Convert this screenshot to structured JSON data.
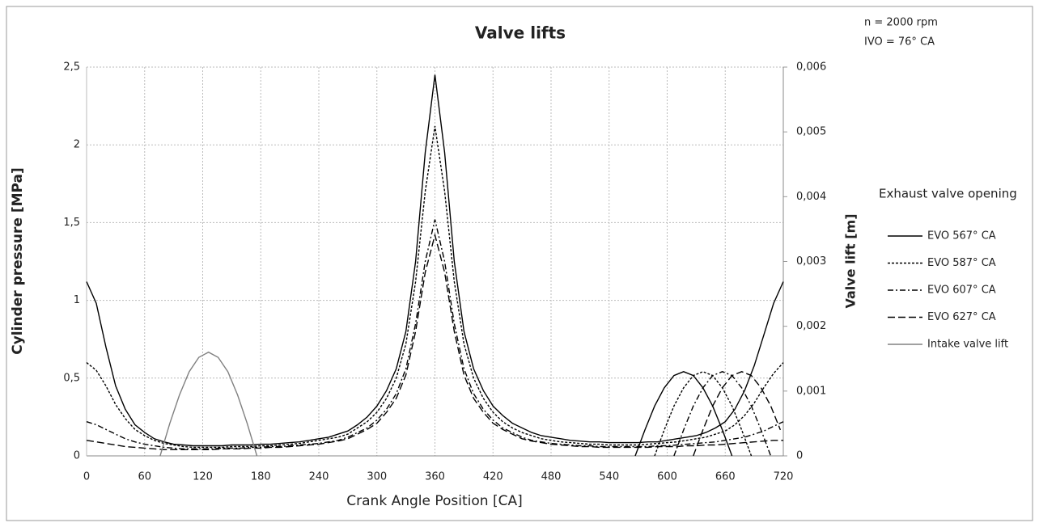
{
  "chart_data": {
    "type": "line",
    "title": "Valve lifts",
    "annotations": [
      "n = 2000 rpm",
      "IVO = 76° CA"
    ],
    "xlabel": "Crank Angle Position [CA]",
    "ylabel": "Cylinder pressure [MPa]",
    "y2label": "Valve lift [m]",
    "legend_title": "Exhaust valve opening",
    "legend": "right",
    "grid": true,
    "xlim": [
      0,
      720
    ],
    "xticks": [
      0,
      60,
      120,
      180,
      240,
      300,
      360,
      420,
      480,
      540,
      600,
      660,
      720
    ],
    "ylim": [
      0,
      2.5
    ],
    "yticks": [
      0,
      {
        "value": 0.5,
        "label": "0,5"
      },
      1,
      {
        "value": 1.5,
        "label": "1,5"
      },
      2,
      {
        "value": 2.5,
        "label": "2,5"
      }
    ],
    "y2lim": [
      0,
      0.006
    ],
    "y2ticks": [
      0,
      {
        "value": 0.001,
        "label": "0,001"
      },
      {
        "value": 0.002,
        "label": "0,002"
      },
      {
        "value": 0.003,
        "label": "0,003"
      },
      {
        "value": 0.004,
        "label": "0,004"
      },
      {
        "value": 0.005,
        "label": "0,005"
      },
      {
        "value": 0.006,
        "label": "0,006"
      }
    ],
    "x": [
      0,
      10,
      20,
      30,
      40,
      50,
      60,
      70,
      80,
      90,
      100,
      110,
      120,
      130,
      140,
      150,
      160,
      170,
      180,
      190,
      200,
      210,
      220,
      230,
      240,
      250,
      260,
      270,
      280,
      290,
      300,
      310,
      320,
      330,
      340,
      350,
      360,
      370,
      380,
      390,
      400,
      410,
      420,
      430,
      440,
      450,
      460,
      470,
      480,
      490,
      500,
      510,
      520,
      530,
      540,
      550,
      560,
      570,
      580,
      590,
      600,
      610,
      620,
      630,
      640,
      650,
      660,
      670,
      680,
      690,
      700,
      710,
      720
    ],
    "series": [
      {
        "name": "EVO 567° CA",
        "color": "#000000",
        "dash": "none",
        "values": [
          1.12,
          0.98,
          0.7,
          0.45,
          0.3,
          0.2,
          0.15,
          0.11,
          0.09,
          0.075,
          0.07,
          0.065,
          0.065,
          0.065,
          0.065,
          0.07,
          0.07,
          0.07,
          0.075,
          0.075,
          0.08,
          0.085,
          0.09,
          0.1,
          0.11,
          0.12,
          0.14,
          0.16,
          0.2,
          0.25,
          0.32,
          0.42,
          0.56,
          0.8,
          1.25,
          1.95,
          2.45,
          1.95,
          1.25,
          0.8,
          0.56,
          0.42,
          0.32,
          0.26,
          0.21,
          0.18,
          0.15,
          0.13,
          0.12,
          0.11,
          0.1,
          0.095,
          0.09,
          0.09,
          0.085,
          0.085,
          0.085,
          0.085,
          0.09,
          0.09,
          0.1,
          0.11,
          0.12,
          0.13,
          0.15,
          0.18,
          0.22,
          0.3,
          0.42,
          0.58,
          0.78,
          0.98,
          1.12
        ],
        "lift_x": [
          567,
          577,
          587,
          597,
          607,
          617,
          627,
          637,
          647,
          657,
          667
        ],
        "lift_values": [
          0,
          0.0004,
          0.00077,
          0.00105,
          0.00124,
          0.0013,
          0.00124,
          0.00105,
          0.00077,
          0.0004,
          0
        ]
      },
      {
        "name": "EVO 587° CA",
        "color": "#000000",
        "dash": "3,2",
        "values": [
          0.6,
          0.55,
          0.45,
          0.33,
          0.24,
          0.17,
          0.13,
          0.1,
          0.08,
          0.07,
          0.06,
          0.055,
          0.055,
          0.055,
          0.055,
          0.06,
          0.06,
          0.06,
          0.065,
          0.065,
          0.07,
          0.075,
          0.08,
          0.09,
          0.1,
          0.11,
          0.12,
          0.14,
          0.18,
          0.22,
          0.28,
          0.37,
          0.5,
          0.72,
          1.12,
          1.7,
          2.12,
          1.7,
          1.12,
          0.72,
          0.5,
          0.37,
          0.28,
          0.22,
          0.18,
          0.15,
          0.13,
          0.11,
          0.1,
          0.09,
          0.085,
          0.08,
          0.075,
          0.075,
          0.07,
          0.07,
          0.07,
          0.07,
          0.075,
          0.08,
          0.085,
          0.09,
          0.1,
          0.11,
          0.12,
          0.14,
          0.16,
          0.2,
          0.26,
          0.34,
          0.44,
          0.53,
          0.6
        ],
        "lift_x": [
          587,
          597,
          607,
          617,
          627,
          637,
          647,
          657,
          667,
          677,
          687
        ],
        "lift_values": [
          0,
          0.0004,
          0.00077,
          0.00105,
          0.00124,
          0.0013,
          0.00124,
          0.00105,
          0.00077,
          0.0004,
          0
        ]
      },
      {
        "name": "EVO 607° CA",
        "color": "#000000",
        "dash": "7,3,2,3",
        "values": [
          0.22,
          0.2,
          0.17,
          0.14,
          0.11,
          0.09,
          0.075,
          0.065,
          0.055,
          0.05,
          0.045,
          0.045,
          0.045,
          0.045,
          0.05,
          0.05,
          0.05,
          0.055,
          0.055,
          0.06,
          0.06,
          0.065,
          0.07,
          0.075,
          0.08,
          0.09,
          0.1,
          0.12,
          0.15,
          0.18,
          0.23,
          0.3,
          0.4,
          0.56,
          0.85,
          1.25,
          1.52,
          1.25,
          0.85,
          0.56,
          0.4,
          0.3,
          0.23,
          0.18,
          0.15,
          0.12,
          0.1,
          0.09,
          0.08,
          0.075,
          0.07,
          0.065,
          0.065,
          0.06,
          0.06,
          0.06,
          0.06,
          0.06,
          0.06,
          0.065,
          0.065,
          0.07,
          0.075,
          0.08,
          0.085,
          0.09,
          0.1,
          0.11,
          0.12,
          0.14,
          0.16,
          0.19,
          0.22
        ],
        "lift_x": [
          607,
          617,
          627,
          637,
          647,
          657,
          667,
          677,
          687,
          697,
          707
        ],
        "lift_values": [
          0,
          0.0004,
          0.00077,
          0.00105,
          0.00124,
          0.0013,
          0.00124,
          0.00105,
          0.00077,
          0.0004,
          0
        ]
      },
      {
        "name": "EVO 627° CA",
        "color": "#000000",
        "dash": "9,4",
        "values": [
          0.1,
          0.09,
          0.08,
          0.07,
          0.06,
          0.055,
          0.05,
          0.045,
          0.04,
          0.04,
          0.04,
          0.04,
          0.04,
          0.04,
          0.045,
          0.045,
          0.045,
          0.05,
          0.05,
          0.055,
          0.055,
          0.06,
          0.065,
          0.07,
          0.075,
          0.085,
          0.095,
          0.11,
          0.14,
          0.17,
          0.21,
          0.28,
          0.37,
          0.52,
          0.8,
          1.18,
          1.42,
          1.18,
          0.8,
          0.52,
          0.37,
          0.28,
          0.21,
          0.17,
          0.14,
          0.11,
          0.095,
          0.085,
          0.075,
          0.07,
          0.065,
          0.06,
          0.06,
          0.055,
          0.055,
          0.055,
          0.055,
          0.055,
          0.055,
          0.06,
          0.06,
          0.06,
          0.065,
          0.065,
          0.07,
          0.07,
          0.075,
          0.08,
          0.085,
          0.09,
          0.095,
          0.1,
          0.1
        ],
        "lift_x": [
          627,
          637,
          647,
          657,
          667,
          677,
          687,
          697,
          707,
          717
        ],
        "lift_values": [
          0,
          0.0004,
          0.00077,
          0.00105,
          0.00124,
          0.0013,
          0.00124,
          0.00105,
          0.00077,
          0.0004
        ]
      },
      {
        "name": "Intake valve lift",
        "color": "#808080",
        "dash": "none",
        "axis": "y2",
        "x": [
          76,
          86,
          96,
          106,
          116,
          126,
          136,
          146,
          156,
          166,
          176
        ],
        "values": [
          0,
          0.0005,
          0.00094,
          0.0013,
          0.00152,
          0.0016,
          0.00152,
          0.0013,
          0.00094,
          0.0005,
          0
        ]
      }
    ]
  }
}
